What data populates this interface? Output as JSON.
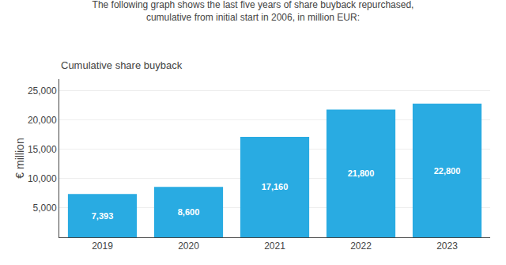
{
  "chart_data": {
    "type": "bar",
    "title": "The following graph shows the last five years of share buyback repurchased,\ncumulative from initial start in 2006, in million EUR:",
    "subtitle": "Cumulative share buyback",
    "ylabel": "€ million",
    "categories": [
      "2019",
      "2020",
      "2021",
      "2022",
      "2023"
    ],
    "values": [
      7393,
      8600,
      17160,
      21800,
      22800
    ],
    "value_labels": [
      "7,393",
      "8,600",
      "17,160",
      "21,800",
      "22,800"
    ],
    "data_labels": true,
    "color": "#29ABE2",
    "ylim": [
      0,
      27000
    ],
    "yticks": [
      {
        "value": 5000,
        "label": "5,000"
      },
      {
        "value": 10000,
        "label": "10,000"
      },
      {
        "value": 15000,
        "label": "15,000"
      },
      {
        "value": 20000,
        "label": "20,000"
      },
      {
        "value": 25000,
        "label": "25,000"
      }
    ],
    "grid": true
  }
}
